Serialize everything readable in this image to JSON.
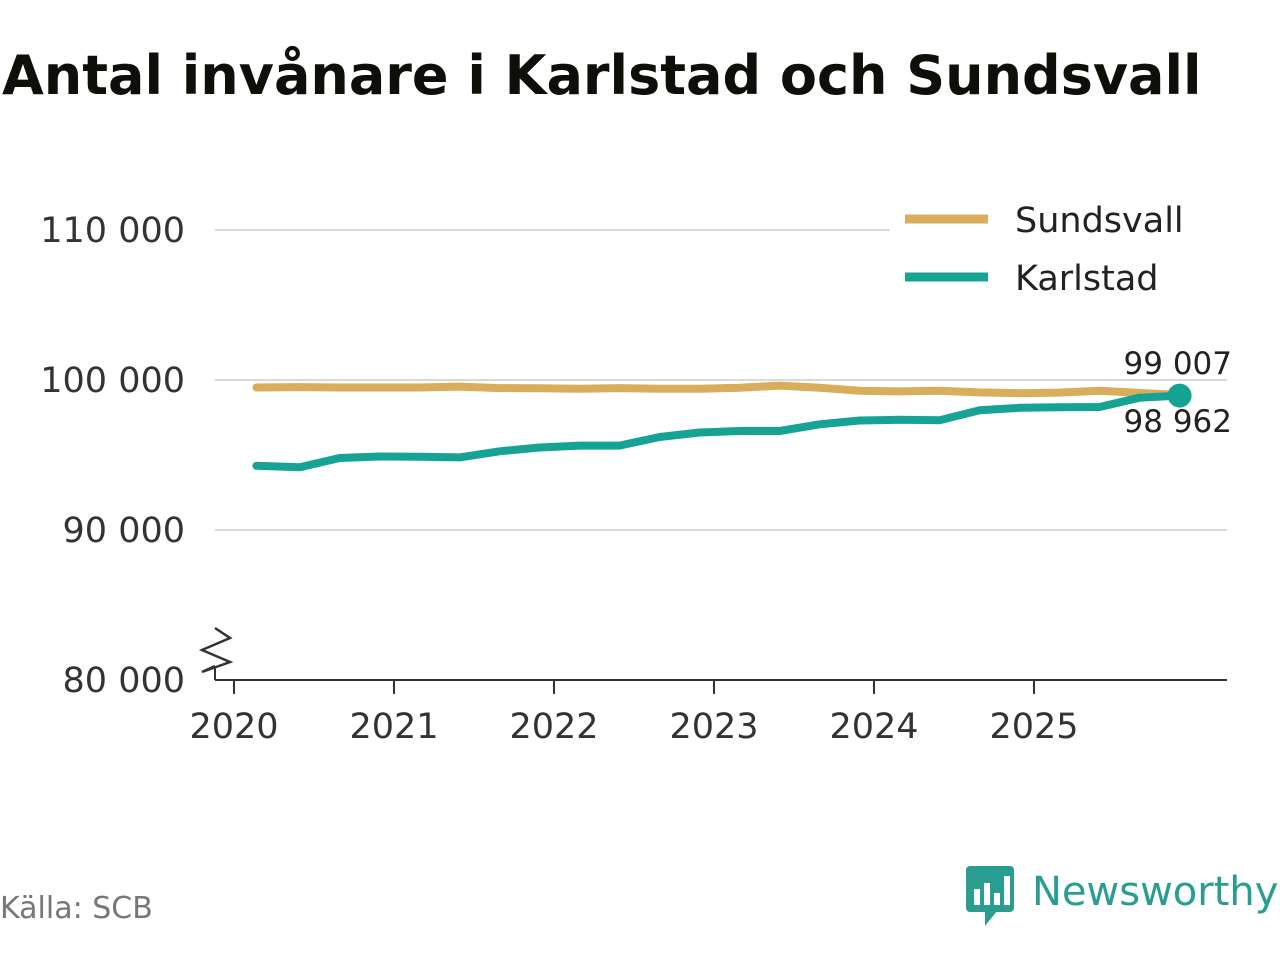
{
  "colors": {
    "sundsvall": "#d8ad5c",
    "karlstad": "#16a394",
    "grid": "#d9d9d9",
    "axis": "#333333",
    "brand": "#2a9d91"
  },
  "footer": {
    "source": "Källa: SCB",
    "brand": "Newsworthy"
  },
  "chart_data": {
    "type": "line",
    "title": "Antal invånare i Karlstad och Sundsvall",
    "xlabel": "",
    "ylabel": "",
    "ylim": [
      80000,
      113000
    ],
    "y_ticks": [
      80000,
      90000,
      100000,
      110000
    ],
    "y_tick_labels": [
      "80 000",
      "90 000",
      "100 000",
      "110 000"
    ],
    "y_axis_break": true,
    "xlim": [
      2019.9,
      2026.2
    ],
    "x_ticks": [
      2020,
      2021,
      2022,
      2023,
      2024,
      2025
    ],
    "x_tick_labels": [
      "2020",
      "2021",
      "2022",
      "2023",
      "2024",
      "2025"
    ],
    "grid": true,
    "legend_position": "top-right",
    "x": [
      2020.14,
      2020.41,
      2020.66,
      2020.91,
      2021.16,
      2021.41,
      2021.66,
      2021.91,
      2022.16,
      2022.41,
      2022.66,
      2022.91,
      2023.16,
      2023.41,
      2023.66,
      2023.91,
      2024.16,
      2024.41,
      2024.66,
      2024.91,
      2025.16,
      2025.41,
      2025.66,
      2025.91
    ],
    "series": [
      {
        "name": "Sundsvall",
        "values": [
          99500,
          99530,
          99500,
          99500,
          99500,
          99560,
          99460,
          99450,
          99420,
          99460,
          99420,
          99420,
          99480,
          99630,
          99490,
          99290,
          99240,
          99290,
          99170,
          99120,
          99160,
          99280,
          99140,
          99007
        ],
        "end_label": "99 007"
      },
      {
        "name": "Karlstad",
        "values": [
          94280,
          94180,
          94800,
          94900,
          94880,
          94840,
          95250,
          95500,
          95630,
          95630,
          96200,
          96500,
          96600,
          96600,
          97050,
          97300,
          97350,
          97320,
          97980,
          98150,
          98180,
          98200,
          98820,
          98962
        ],
        "end_label": "98 962"
      }
    ]
  }
}
